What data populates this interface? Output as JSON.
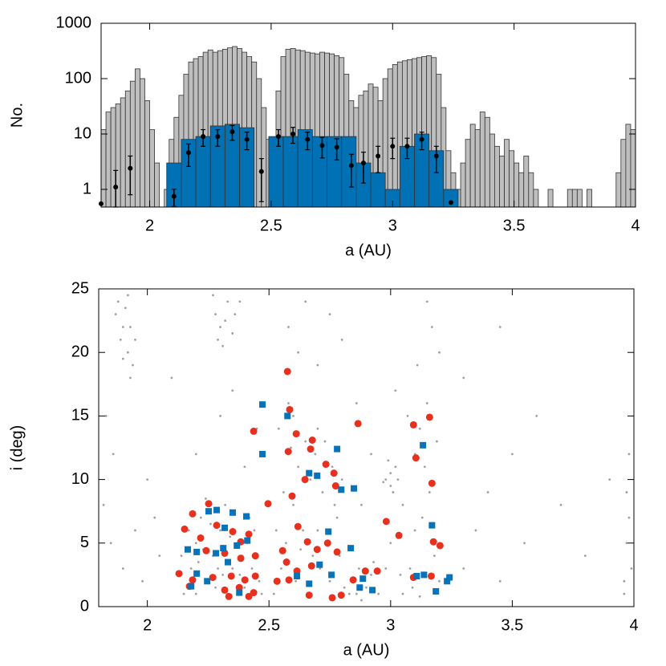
{
  "chart_data": [
    {
      "type": "histogram",
      "xlabel": "a (AU)",
      "ylabel": "No.",
      "log_y": true,
      "xlim": [
        1.8,
        4
      ],
      "ylim": [
        0.48,
        1000
      ],
      "xticks": [
        2,
        2.5,
        3,
        3.5,
        4
      ],
      "yticks": [
        1,
        10,
        100,
        1000
      ],
      "series": [
        {
          "color": "#bebebe",
          "bins": [
            1.8,
            1.82,
            1.84,
            1.86,
            1.88,
            1.9,
            1.92,
            1.94,
            1.96,
            1.98,
            2,
            2.02,
            2.04,
            2.06,
            2.08,
            2.1,
            2.12,
            2.14,
            2.16,
            2.18,
            2.2,
            2.22,
            2.24,
            2.26,
            2.28,
            2.3,
            2.32,
            2.34,
            2.36,
            2.38,
            2.4,
            2.42,
            2.44,
            2.46,
            2.48,
            2.5,
            2.52,
            2.54,
            2.56,
            2.58,
            2.6,
            2.62,
            2.64,
            2.66,
            2.68,
            2.7,
            2.72,
            2.74,
            2.76,
            2.78,
            2.8,
            2.82,
            2.84,
            2.86,
            2.88,
            2.9,
            2.92,
            2.94,
            2.96,
            2.98,
            3,
            3.02,
            3.04,
            3.06,
            3.08,
            3.1,
            3.12,
            3.14,
            3.16,
            3.18,
            3.2,
            3.22,
            3.24,
            3.26,
            3.28,
            3.3,
            3.32,
            3.34,
            3.36,
            3.38,
            3.4,
            3.42,
            3.44,
            3.46,
            3.48,
            3.5,
            3.52,
            3.54,
            3.56,
            3.58,
            3.6,
            3.62,
            3.64,
            3.66,
            3.68,
            3.7,
            3.72,
            3.74,
            3.76,
            3.78,
            3.8,
            3.82,
            3.84,
            3.86,
            3.88,
            3.9,
            3.92,
            3.94,
            3.96,
            3.98,
            4
          ],
          "counts": [
            12,
            25,
            30,
            35,
            45,
            60,
            90,
            150,
            100,
            40,
            12,
            3,
            0,
            1,
            8,
            20,
            50,
            120,
            200,
            230,
            250,
            300,
            330,
            300,
            320,
            340,
            360,
            380,
            350,
            300,
            250,
            200,
            100,
            30,
            8,
            2,
            60,
            250,
            340,
            350,
            330,
            320,
            300,
            290,
            280,
            300,
            290,
            280,
            260,
            240,
            120,
            40,
            30,
            50,
            60,
            80,
            70,
            40,
            100,
            150,
            180,
            200,
            210,
            220,
            230,
            240,
            250,
            260,
            240,
            120,
            30,
            5,
            2,
            1,
            3,
            8,
            15,
            12,
            25,
            20,
            10,
            6,
            4,
            8,
            5,
            3,
            2,
            4,
            2,
            1,
            0,
            0,
            1,
            0,
            0,
            0,
            1,
            1,
            1,
            0,
            1,
            0,
            0,
            0,
            0,
            0,
            2,
            8,
            15,
            12
          ]
        },
        {
          "color": "#0071b5",
          "bins": [
            2.07,
            2.13,
            2.19,
            2.25,
            2.31,
            2.37,
            2.43,
            2.49,
            2.55,
            2.61,
            2.67,
            2.73,
            2.79,
            2.85,
            2.91,
            2.97,
            3.03,
            3.09,
            3.15,
            3.21,
            3.27
          ],
          "counts": [
            3,
            8,
            9,
            14,
            15,
            13,
            0,
            9,
            9,
            12,
            9,
            9,
            9,
            3,
            2,
            1,
            6,
            10,
            5,
            1
          ]
        }
      ],
      "points": {
        "color": "#000000",
        "x": [
          1.8,
          1.86,
          1.92,
          2.1,
          2.16,
          2.22,
          2.28,
          2.34,
          2.4,
          2.46,
          2.53,
          2.59,
          2.65,
          2.71,
          2.77,
          2.83,
          2.88,
          2.94,
          3,
          3.06,
          3.12,
          3.18,
          3.24
        ],
        "values": [
          0.55,
          1.1,
          2.4,
          0.75,
          4.6,
          9,
          9,
          11,
          8,
          2.1,
          9,
          10,
          8,
          6.2,
          5.8,
          2.7,
          3,
          4,
          6,
          6,
          8,
          4,
          0.58
        ],
        "errors": [
          0,
          1.1,
          1.6,
          0.26,
          2,
          3,
          3,
          3.3,
          2.8,
          1.5,
          3,
          3.2,
          2.8,
          2.5,
          2.4,
          1.6,
          1.7,
          2,
          2.4,
          2.4,
          2.8,
          2,
          0
        ]
      }
    },
    {
      "type": "scatter",
      "xlabel": "a (AU)",
      "ylabel": "i (deg)",
      "xlim": [
        1.8,
        4
      ],
      "ylim": [
        0,
        25
      ],
      "xticks": [
        2,
        2.5,
        3,
        3.5,
        4
      ],
      "yticks": [
        0,
        5,
        10,
        15,
        20,
        25
      ],
      "series": [
        {
          "color": "#a0a0a0",
          "marker": "dot",
          "x": [
            1.88,
            1.9,
            1.92,
            1.93,
            1.91,
            1.94,
            1.89,
            1.92,
            1.9,
            1.93,
            1.87,
            1.95,
            1.82,
            1.85,
            1.9,
            1.95,
            2,
            2.05,
            1.83,
            1.98,
            1.86,
            2.03,
            2.28,
            2.3,
            2.33,
            2.35,
            2.27,
            2.31,
            2.36,
            2.32,
            2.29,
            2.38,
            2.15,
            2.18,
            2.2,
            2.22,
            2.25,
            2.27,
            2.3,
            2.32,
            2.35,
            2.37,
            2.4,
            2.42,
            2.45,
            2.2,
            2.28,
            2.33,
            2.38,
            2.43,
            2.24,
            2.36,
            2.17,
            2.21,
            2.26,
            2.34,
            2.41,
            2.46,
            2.14,
            2.19,
            2.29,
            2.39,
            2.44,
            2.23,
            2.31,
            2.47,
            2.2,
            2.3,
            2.4,
            2.45,
            2.1,
            2.35,
            2.52,
            2.55,
            2.57,
            2.6,
            2.62,
            2.65,
            2.68,
            2.7,
            2.72,
            2.75,
            2.78,
            2.8,
            2.54,
            2.58,
            2.61,
            2.64,
            2.67,
            2.69,
            2.71,
            2.74,
            2.76,
            2.79,
            2.81,
            2.56,
            2.59,
            2.63,
            2.66,
            2.73,
            2.77,
            2.53,
            2.6,
            2.7,
            2.58,
            2.62,
            2.7,
            2.75,
            2.8,
            2.65,
            2.83,
            2.85,
            2.87,
            2.9,
            2.92,
            2.95,
            2.88,
            2.93,
            2.86,
            2.88,
            2.92,
            2.86,
            2.98,
            3,
            3.02,
            3,
            3.01,
            2.99,
            3.03,
            2.97,
            3.05,
            3.1,
            3.12,
            3.15,
            3.18,
            3.2,
            3.08,
            3.05,
            3,
            3.1,
            3.13,
            3.16,
            3.14,
            3.19,
            3.07,
            3.02,
            3.11,
            3.17,
            3.15,
            3.2,
            3.09,
            3.04,
            3.12,
            2.98,
            3.3,
            3.35,
            3.4,
            3.45,
            3.5,
            3.55,
            3.6,
            3.7,
            3.8,
            3.9,
            3.3,
            3.45,
            3.96,
            3.97,
            3.98,
            3.99,
            3.97,
            3.98,
            3.96
          ],
          "values": [
            24,
            22,
            20,
            18,
            23.5,
            19,
            21,
            24.5,
            19.5,
            22,
            23,
            21,
            8,
            5,
            3,
            6,
            10,
            4,
            15,
            2,
            12,
            7,
            23,
            22,
            24,
            21.5,
            24.5,
            20.5,
            23,
            22.5,
            21,
            24,
            1,
            3,
            5,
            7,
            2,
            4,
            6,
            8,
            3,
            5,
            1.5,
            7,
            4,
            1,
            1.5,
            1,
            2.5,
            3,
            8.5,
            7.5,
            6,
            3.5,
            6.5,
            5.5,
            5,
            2,
            4,
            2,
            3,
            4,
            6,
            4.5,
            2.5,
            1,
            12,
            15,
            11,
            14,
            18,
            17,
            1,
            3,
            5,
            8,
            11,
            13,
            4,
            6,
            9,
            2,
            7,
            10,
            14,
            16,
            2,
            6,
            10,
            12,
            3,
            5,
            11,
            4,
            1.5,
            9,
            12.5,
            4.5,
            1,
            13,
            8,
            6,
            15,
            14,
            22,
            20,
            19,
            23,
            21,
            24,
            1,
            2,
            3,
            1.5,
            2.5,
            1,
            0.5,
            3.5,
            1,
            8,
            12,
            16,
            10,
            9.5,
            11,
            10.5,
            9,
            11.5,
            10,
            9.8,
            8,
            12,
            14,
            16,
            4,
            2,
            3,
            1,
            5,
            6,
            7,
            9,
            11,
            13,
            15,
            17,
            19,
            22,
            24,
            20,
            1.5,
            2.5,
            0.8,
            3,
            3,
            6,
            9,
            2,
            12,
            5,
            15,
            8,
            4,
            10,
            18,
            22,
            2,
            5,
            7,
            3,
            9,
            12,
            1
          ]
        },
        {
          "color": "#e8301e",
          "marker": "circle",
          "x": [
            2.576,
            2.585,
            2.866,
            2.437,
            2.612,
            3.094,
            3.16,
            2.678,
            2.671,
            2.579,
            2.734,
            3.104,
            2.648,
            2.767,
            3.17,
            2.496,
            2.595,
            2.774,
            2.982,
            3.034,
            2.186,
            2.252,
            2.153,
            2.285,
            2.351,
            2.219,
            2.384,
            2.417,
            2.619,
            2.658,
            2.698,
            2.741,
            2.78,
            3.176,
            3.203,
            2.242,
            2.318,
            2.384,
            2.444,
            2.556,
            2.572,
            2.675,
            2.615,
            2.13,
            2.186,
            2.269,
            2.345,
            2.401,
            2.444,
            2.846,
            2.896,
            2.945,
            2.173,
            2.318,
            2.378,
            2.437,
            2.533,
            2.582,
            2.335,
            2.417,
            2.665,
            2.76,
            2.797,
            3.094,
            3.167
          ],
          "values": [
            18.5,
            15.5,
            14.4,
            13.8,
            13.6,
            14.3,
            14.9,
            13.1,
            12.4,
            12.2,
            11.2,
            11.7,
            10,
            10.5,
            9.7,
            8.1,
            8.7,
            9.5,
            6.7,
            5.6,
            7.3,
            8.1,
            6.1,
            6.4,
            5.9,
            5.4,
            5.1,
            5.7,
            6.3,
            5.1,
            4.5,
            5,
            4.3,
            5.1,
            4.8,
            4.4,
            4.2,
            3.8,
            4,
            4.4,
            3.5,
            3.2,
            2.8,
            2.6,
            2.1,
            2.3,
            2.4,
            2.1,
            2.4,
            2.1,
            2.8,
            2.8,
            1.6,
            1.3,
            1.5,
            1.1,
            2,
            2.1,
            0.8,
            0.8,
            0.9,
            0.7,
            0.9,
            2.3,
            2.4
          ]
        },
        {
          "color": "#0873b9",
          "marker": "square",
          "x": [
            2.473,
            2.576,
            2.473,
            2.78,
            3.133,
            2.665,
            2.698,
            2.849,
            2.797,
            2.407,
            2.252,
            2.285,
            2.351,
            2.318,
            2.411,
            3.17,
            2.744,
            2.166,
            2.203,
            2.312,
            2.368,
            2.282,
            2.836,
            2.331,
            2.708,
            2.757,
            2.203,
            2.246,
            2.615,
            3.137,
            3.107,
            3.242,
            3.232,
            2.886,
            2.925,
            2.873,
            2.18,
            2.378,
            3.186,
            2.665
          ],
          "values": [
            15.9,
            15,
            12,
            12.4,
            12.7,
            10.5,
            10.3,
            9.3,
            9.2,
            7.1,
            7.5,
            7.6,
            7.4,
            6.2,
            5.2,
            6.4,
            5.9,
            4.5,
            4.3,
            4.6,
            4.8,
            4.2,
            4.6,
            3.5,
            3.3,
            2.5,
            2.6,
            2,
            2.4,
            2.5,
            2.4,
            2.3,
            2,
            2.2,
            1.3,
            1.5,
            1.6,
            1.1,
            1.2,
            1.8
          ]
        }
      ]
    }
  ]
}
